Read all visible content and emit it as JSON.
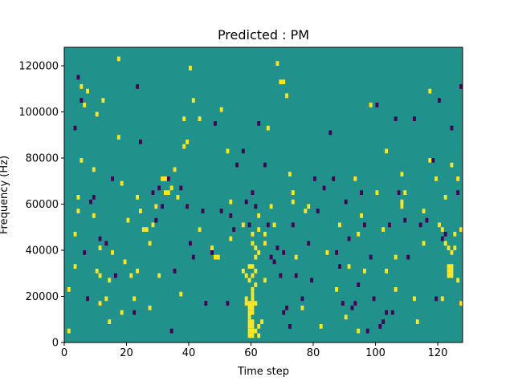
{
  "chart_data": {
    "type": "heatmap",
    "title": "Predicted : PM",
    "xlabel": "Time step",
    "ylabel": "Frequency (Hz)",
    "xlim": [
      0,
      128
    ],
    "ylim": [
      0,
      128000
    ],
    "x_ticks": [
      0,
      20,
      40,
      60,
      80,
      100,
      120
    ],
    "y_ticks": [
      0,
      20000,
      40000,
      60000,
      80000,
      100000,
      120000
    ],
    "y_tick_labels": [
      "0",
      "20000",
      "40000",
      "60000",
      "80000",
      "100000",
      "120000"
    ],
    "grid": false,
    "colors": {
      "background": "#21918c",
      "high": "#fde725",
      "low": "#440154"
    },
    "cell_size": {
      "time_steps": 1,
      "frequency_hz": 2000
    },
    "cells_high": [
      [
        1,
        4000
      ],
      [
        1,
        22000
      ],
      [
        3,
        32000
      ],
      [
        3,
        46000
      ],
      [
        4,
        56000
      ],
      [
        4,
        62000
      ],
      [
        5,
        78000
      ],
      [
        5,
        110000
      ],
      [
        6,
        102000
      ],
      [
        7,
        108000
      ],
      [
        9,
        54000
      ],
      [
        9,
        74000
      ],
      [
        10,
        30000
      ],
      [
        10,
        98000
      ],
      [
        11,
        16000
      ],
      [
        11,
        28000
      ],
      [
        11,
        40000
      ],
      [
        12,
        104000
      ],
      [
        13,
        18000
      ],
      [
        14,
        8000
      ],
      [
        14,
        26000
      ],
      [
        15,
        38000
      ],
      [
        17,
        88000
      ],
      [
        17,
        122000
      ],
      [
        18,
        12000
      ],
      [
        18,
        68000
      ],
      [
        19,
        34000
      ],
      [
        20,
        52000
      ],
      [
        21,
        28000
      ],
      [
        22,
        18000
      ],
      [
        23,
        30000
      ],
      [
        23,
        62000
      ],
      [
        24,
        56000
      ],
      [
        25,
        48000
      ],
      [
        26,
        48000
      ],
      [
        27,
        14000
      ],
      [
        27,
        42000
      ],
      [
        28,
        50000
      ],
      [
        29,
        58000
      ],
      [
        30,
        28000
      ],
      [
        31,
        70000
      ],
      [
        32,
        70000
      ],
      [
        32,
        64000
      ],
      [
        33,
        64000
      ],
      [
        34,
        66000
      ],
      [
        35,
        74000
      ],
      [
        36,
        62000
      ],
      [
        37,
        20000
      ],
      [
        38,
        84000
      ],
      [
        38,
        96000
      ],
      [
        39,
        86000
      ],
      [
        40,
        118000
      ],
      [
        41,
        104000
      ],
      [
        43,
        48000
      ],
      [
        43,
        96000
      ],
      [
        47,
        40000
      ],
      [
        48,
        36000
      ],
      [
        49,
        36000
      ],
      [
        50,
        100000
      ],
      [
        52,
        82000
      ],
      [
        53,
        60000
      ],
      [
        53,
        44000
      ],
      [
        57,
        50000
      ],
      [
        57,
        30000
      ],
      [
        58,
        18000
      ],
      [
        58,
        16000
      ],
      [
        58,
        28000
      ],
      [
        59,
        16000
      ],
      [
        59,
        14000
      ],
      [
        59,
        12000
      ],
      [
        59,
        10000
      ],
      [
        59,
        8000
      ],
      [
        59,
        6000
      ],
      [
        59,
        4000
      ],
      [
        59,
        2000
      ],
      [
        59,
        26000
      ],
      [
        59,
        32000
      ],
      [
        60,
        14000
      ],
      [
        60,
        8000
      ],
      [
        60,
        4000
      ],
      [
        60,
        12000
      ],
      [
        60,
        6000
      ],
      [
        60,
        2000
      ],
      [
        60,
        32000
      ],
      [
        60,
        28000
      ],
      [
        60,
        22000
      ],
      [
        60,
        16000
      ],
      [
        60,
        18000
      ],
      [
        60,
        20000
      ],
      [
        60,
        42000
      ],
      [
        60,
        46000
      ],
      [
        61,
        4000
      ],
      [
        61,
        16000
      ],
      [
        61,
        24000
      ],
      [
        61,
        30000
      ],
      [
        61,
        36000
      ],
      [
        61,
        40000
      ],
      [
        62,
        2000
      ],
      [
        62,
        6000
      ],
      [
        62,
        38000
      ],
      [
        62,
        48000
      ],
      [
        62,
        54000
      ],
      [
        63,
        8000
      ],
      [
        64,
        46000
      ],
      [
        64,
        42000
      ],
      [
        64,
        26000
      ],
      [
        65,
        92000
      ],
      [
        66,
        58000
      ],
      [
        67,
        50000
      ],
      [
        68,
        120000
      ],
      [
        69,
        112000
      ],
      [
        70,
        112000
      ],
      [
        71,
        106000
      ],
      [
        72,
        72000
      ],
      [
        73,
        64000
      ],
      [
        73,
        60000
      ],
      [
        74,
        36000
      ],
      [
        76,
        14000
      ],
      [
        77,
        56000
      ],
      [
        78,
        58000
      ],
      [
        82,
        6000
      ],
      [
        84,
        38000
      ],
      [
        87,
        22000
      ],
      [
        88,
        50000
      ],
      [
        90,
        10000
      ],
      [
        91,
        32000
      ],
      [
        93,
        70000
      ],
      [
        94,
        46000
      ],
      [
        94,
        4000
      ],
      [
        95,
        54000
      ],
      [
        96,
        30000
      ],
      [
        98,
        102000
      ],
      [
        100,
        64000
      ],
      [
        102,
        48000
      ],
      [
        103,
        30000
      ],
      [
        103,
        82000
      ],
      [
        106,
        36000
      ],
      [
        106,
        22000
      ],
      [
        108,
        72000
      ],
      [
        108,
        60000
      ],
      [
        108,
        58000
      ],
      [
        109,
        64000
      ],
      [
        112,
        18000
      ],
      [
        115,
        56000
      ],
      [
        115,
        42000
      ],
      [
        117,
        78000
      ],
      [
        117,
        108000
      ],
      [
        119,
        70000
      ],
      [
        120,
        50000
      ],
      [
        121,
        48000
      ],
      [
        121,
        18000
      ],
      [
        122,
        62000
      ],
      [
        122,
        42000
      ],
      [
        123,
        40000
      ],
      [
        123,
        32000
      ],
      [
        123,
        30000
      ],
      [
        123,
        28000
      ],
      [
        124,
        28000
      ],
      [
        124,
        30000
      ],
      [
        124,
        32000
      ],
      [
        124,
        38000
      ],
      [
        124,
        76000
      ],
      [
        125,
        40000
      ],
      [
        125,
        46000
      ],
      [
        126,
        26000
      ],
      [
        126,
        70000
      ],
      [
        127,
        16000
      ],
      [
        127,
        48000
      ],
      [
        113,
        8000
      ]
    ],
    "cells_low": [
      [
        3,
        92000
      ],
      [
        4,
        114000
      ],
      [
        5,
        104000
      ],
      [
        6,
        38000
      ],
      [
        7,
        18000
      ],
      [
        8,
        60000
      ],
      [
        9,
        62000
      ],
      [
        11,
        44000
      ],
      [
        13,
        42000
      ],
      [
        15,
        70000
      ],
      [
        16,
        28000
      ],
      [
        22,
        12000
      ],
      [
        23,
        110000
      ],
      [
        24,
        86000
      ],
      [
        28,
        64000
      ],
      [
        29,
        52000
      ],
      [
        30,
        66000
      ],
      [
        31,
        58000
      ],
      [
        33,
        70000
      ],
      [
        34,
        4000
      ],
      [
        35,
        30000
      ],
      [
        37,
        66000
      ],
      [
        39,
        58000
      ],
      [
        40,
        42000
      ],
      [
        41,
        36000
      ],
      [
        43,
        48000
      ],
      [
        44,
        56000
      ],
      [
        45,
        16000
      ],
      [
        47,
        38000
      ],
      [
        48,
        94000
      ],
      [
        50,
        56000
      ],
      [
        52,
        16000
      ],
      [
        53,
        54000
      ],
      [
        54,
        48000
      ],
      [
        55,
        76000
      ],
      [
        57,
        82000
      ],
      [
        58,
        60000
      ],
      [
        59,
        50000
      ],
      [
        60,
        64000
      ],
      [
        61,
        58000
      ],
      [
        62,
        94000
      ],
      [
        64,
        76000
      ],
      [
        65,
        50000
      ],
      [
        66,
        36000
      ],
      [
        67,
        34000
      ],
      [
        68,
        40000
      ],
      [
        69,
        28000
      ],
      [
        70,
        38000
      ],
      [
        70,
        12000
      ],
      [
        71,
        14000
      ],
      [
        72,
        6000
      ],
      [
        73,
        50000
      ],
      [
        74,
        28000
      ],
      [
        76,
        18000
      ],
      [
        78,
        42000
      ],
      [
        79,
        26000
      ],
      [
        80,
        70000
      ],
      [
        81,
        56000
      ],
      [
        83,
        66000
      ],
      [
        85,
        90000
      ],
      [
        86,
        70000
      ],
      [
        87,
        38000
      ],
      [
        88,
        32000
      ],
      [
        89,
        16000
      ],
      [
        90,
        60000
      ],
      [
        91,
        44000
      ],
      [
        92,
        14000
      ],
      [
        93,
        16000
      ],
      [
        94,
        24000
      ],
      [
        95,
        64000
      ],
      [
        96,
        50000
      ],
      [
        97,
        4000
      ],
      [
        98,
        36000
      ],
      [
        99,
        18000
      ],
      [
        100,
        102000
      ],
      [
        101,
        6000
      ],
      [
        104,
        50000
      ],
      [
        105,
        12000
      ],
      [
        106,
        96000
      ],
      [
        107,
        64000
      ],
      [
        108,
        58000
      ],
      [
        109,
        52000
      ],
      [
        110,
        36000
      ],
      [
        112,
        96000
      ],
      [
        114,
        50000
      ],
      [
        116,
        52000
      ],
      [
        118,
        78000
      ],
      [
        119,
        18000
      ],
      [
        120,
        104000
      ],
      [
        121,
        44000
      ],
      [
        122,
        46000
      ],
      [
        124,
        92000
      ],
      [
        126,
        64000
      ],
      [
        127,
        110000
      ],
      [
        103,
        12000
      ],
      [
        102,
        8000
      ]
    ]
  }
}
